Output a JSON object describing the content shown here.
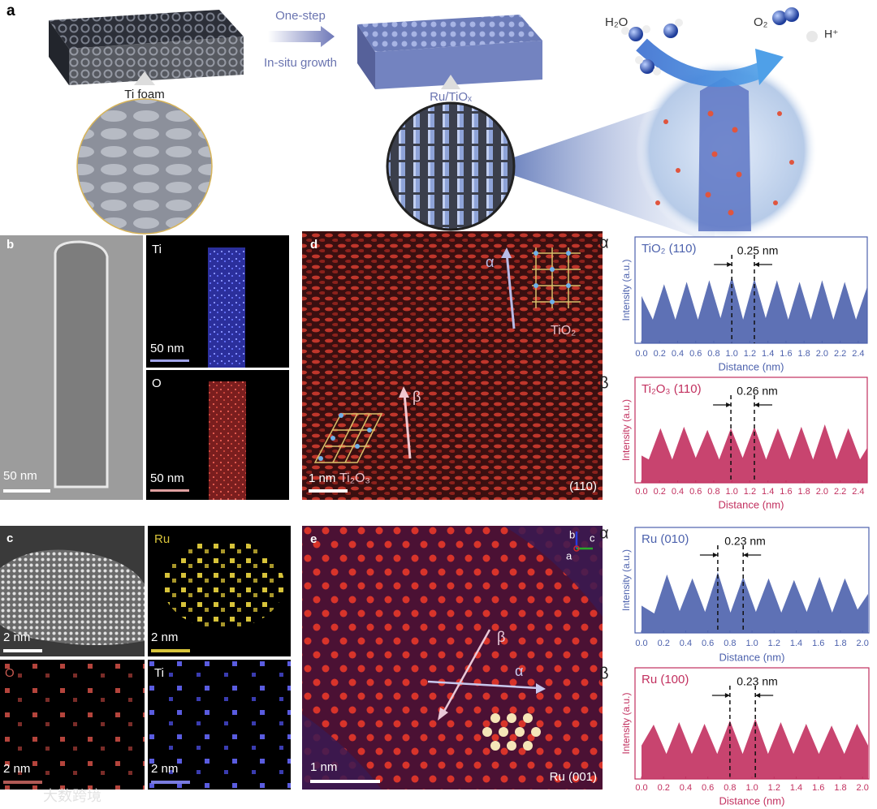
{
  "panel_a": {
    "label": "a",
    "step_top": "One-step",
    "step_bottom": "In-situ growth",
    "left_label": "Ti foam",
    "right_label": "Ru/TiOₓ",
    "water": "H₂O",
    "oxygen": "O₂",
    "proton": "H⁺"
  },
  "panel_b": {
    "label": "b",
    "scale_main": "50 nm",
    "map_ti": "Ti",
    "scale_ti": "50 nm",
    "map_o": "O",
    "scale_o": "50 nm"
  },
  "panel_c": {
    "label": "c",
    "scale_main": "2 nm",
    "map_ru": "Ru",
    "scale_ru": "2 nm",
    "map_o": "O",
    "scale_o": "2 nm",
    "map_ti": "Ti",
    "scale_ti": "2 nm"
  },
  "panel_d": {
    "label": "d",
    "alpha": "α",
    "beta": "β",
    "phase_top": "TiO₂",
    "phase_bottom": "Ti₂O₃",
    "scale": "1 nm",
    "plane": "(110)"
  },
  "panel_e": {
    "label": "e",
    "beta": "β",
    "alpha": "α",
    "scale": "1 nm",
    "plane": "Ru  (001)",
    "axis_b": "b",
    "axis_a": "a",
    "axis_c": "c"
  },
  "watermark": "大数跨境",
  "chart_data": [
    {
      "type": "area",
      "marker": "α",
      "title": "TiO₂ (110)",
      "spacing_label": "0.25 nm",
      "x_label": "Distance (nm)",
      "y_label": "Intensity (a.u.)",
      "color": "#4d62ad",
      "x": [
        0,
        0.125,
        0.25,
        0.375,
        0.5,
        0.625,
        0.75,
        0.875,
        1,
        1.125,
        1.25,
        1.375,
        1.5,
        1.625,
        1.75,
        1.875,
        2,
        2.125,
        2.25,
        2.375,
        2.5
      ],
      "values": [
        0.6,
        0.3,
        0.75,
        0.3,
        0.78,
        0.3,
        0.8,
        0.32,
        0.85,
        0.3,
        0.82,
        0.32,
        0.8,
        0.3,
        0.78,
        0.3,
        0.8,
        0.3,
        0.78,
        0.3,
        0.72
      ],
      "xlim": [
        0,
        2.5
      ],
      "ylim": [
        0,
        1
      ],
      "guides": [
        1.0,
        1.25
      ],
      "xticks": [
        {
          "value": 0,
          "label": "0.0"
        },
        0.2,
        0.4,
        0.6,
        0.8,
        {
          "value": 1,
          "label": "1.0"
        },
        1.2,
        1.4,
        1.6,
        1.8,
        {
          "value": 2,
          "label": "2.0"
        },
        2.2,
        2.4
      ]
    },
    {
      "type": "area",
      "marker": "β",
      "title": "Ti₂O₃ (110)",
      "spacing_label": "0.26 nm",
      "x_label": "Distance (nm)",
      "y_label": "Intensity (a.u.)",
      "color": "#c2305f",
      "x": [
        0,
        0.08,
        0.21,
        0.34,
        0.47,
        0.6,
        0.73,
        0.86,
        0.99,
        1.12,
        1.25,
        1.38,
        1.51,
        1.64,
        1.77,
        1.9,
        2.03,
        2.16,
        2.29,
        2.42,
        2.5
      ],
      "values": [
        0.35,
        0.3,
        0.7,
        0.3,
        0.72,
        0.32,
        0.68,
        0.3,
        0.7,
        0.32,
        0.72,
        0.3,
        0.7,
        0.3,
        0.72,
        0.3,
        0.75,
        0.3,
        0.7,
        0.3,
        0.45
      ],
      "xlim": [
        0,
        2.5
      ],
      "ylim": [
        0,
        1
      ],
      "guides": [
        0.99,
        1.25
      ],
      "xticks": [
        {
          "value": 0,
          "label": "0.0"
        },
        0.2,
        0.4,
        0.6,
        0.8,
        {
          "value": 1,
          "label": "1.0"
        },
        1.2,
        1.4,
        1.6,
        1.8,
        {
          "value": 2,
          "label": "2.0"
        },
        2.2,
        2.4
      ]
    },
    {
      "type": "area",
      "marker": "α",
      "title": "Ru (010)",
      "spacing_label": "0.23 nm",
      "x_label": "Distance (nm)",
      "y_label": "Intensity (a.u.)",
      "color": "#4d62ad",
      "x": [
        0,
        0.115,
        0.23,
        0.345,
        0.46,
        0.575,
        0.69,
        0.805,
        0.92,
        1.035,
        1.15,
        1.265,
        1.38,
        1.495,
        1.61,
        1.725,
        1.84,
        1.955,
        2.05
      ],
      "values": [
        0.35,
        0.25,
        0.75,
        0.28,
        0.7,
        0.27,
        0.78,
        0.26,
        0.72,
        0.27,
        0.7,
        0.26,
        0.68,
        0.27,
        0.72,
        0.26,
        0.7,
        0.3,
        0.5
      ],
      "xlim": [
        0,
        2.05
      ],
      "ylim": [
        0,
        1
      ],
      "guides": [
        0.69,
        0.92
      ],
      "xticks": [
        {
          "value": 0,
          "label": "0.0"
        },
        0.2,
        0.4,
        0.6,
        0.8,
        {
          "value": 1,
          "label": "1.0"
        },
        1.2,
        1.4,
        1.6,
        1.8,
        {
          "value": 2,
          "label": "2.0"
        }
      ]
    },
    {
      "type": "area",
      "marker": "β",
      "title": "Ru (100)",
      "spacing_label": "0.23 nm",
      "x_label": "Distance (nm)",
      "y_label": "Intensity (a.u.)",
      "color": "#c2305f",
      "x": [
        0,
        0.11,
        0.225,
        0.34,
        0.455,
        0.57,
        0.685,
        0.8,
        0.915,
        1.03,
        1.145,
        1.26,
        1.375,
        1.49,
        1.605,
        1.72,
        1.835,
        1.95,
        2.05
      ],
      "values": [
        0.4,
        0.65,
        0.3,
        0.68,
        0.3,
        0.66,
        0.3,
        0.7,
        0.3,
        0.72,
        0.3,
        0.68,
        0.3,
        0.66,
        0.3,
        0.64,
        0.3,
        0.66,
        0.4
      ],
      "xlim": [
        0,
        2.05
      ],
      "ylim": [
        0,
        1
      ],
      "guides": [
        0.8,
        1.03
      ],
      "xticks": [
        {
          "value": 0,
          "label": "0.0"
        },
        0.2,
        0.4,
        0.6,
        0.8,
        {
          "value": 1,
          "label": "1.0"
        },
        1.2,
        1.4,
        1.6,
        1.8,
        {
          "value": 2,
          "label": "2.0"
        }
      ]
    }
  ]
}
